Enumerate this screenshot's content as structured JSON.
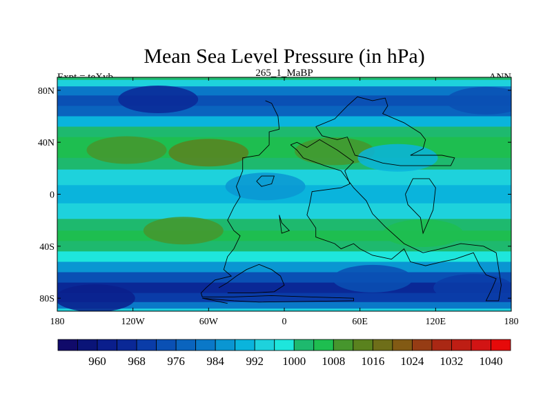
{
  "chart_data": {
    "type": "heatmap",
    "title": "Mean Sea Level Pressure (in hPa)",
    "left_label": "Expt = teXyb",
    "center_label": "265_1_MaBP",
    "right_label": "ANN",
    "xlim": [
      -180,
      180
    ],
    "ylim": [
      -90,
      90
    ],
    "x_ticks": [
      {
        "value": -180,
        "label": "180"
      },
      {
        "value": -120,
        "label": "120W"
      },
      {
        "value": -60,
        "label": "60W"
      },
      {
        "value": 0,
        "label": "0"
      },
      {
        "value": 60,
        "label": "60E"
      },
      {
        "value": 120,
        "label": "120E"
      },
      {
        "value": 180,
        "label": "180"
      }
    ],
    "y_ticks": [
      {
        "value": 80,
        "label": "80N"
      },
      {
        "value": 40,
        "label": "40N"
      },
      {
        "value": 0,
        "label": "0"
      },
      {
        "value": -40,
        "label": "40S"
      },
      {
        "value": -80,
        "label": "80S"
      }
    ],
    "colorbar": {
      "levels": [
        956,
        960,
        964,
        968,
        972,
        976,
        980,
        984,
        988,
        992,
        996,
        1000,
        1004,
        1008,
        1012,
        1016,
        1020,
        1024,
        1028,
        1032,
        1036,
        1040
      ],
      "labels": [
        "960",
        "968",
        "976",
        "984",
        "992",
        "1000",
        "1008",
        "1016",
        "1024",
        "1032",
        "1040"
      ],
      "colors": [
        "#100a6a",
        "#0a1478",
        "#0a1e8c",
        "#0a2896",
        "#0a3ca8",
        "#0a50b4",
        "#0a64be",
        "#0a78c8",
        "#0a96d2",
        "#0ab4dc",
        "#1ed2dc",
        "#1ee6dc",
        "#1eb96e",
        "#1ebe50",
        "#46962d",
        "#5a821e",
        "#6e6e19",
        "#825a14",
        "#963c14",
        "#aa2814",
        "#be1e14",
        "#d21414",
        "#e60a0a"
      ]
    },
    "zonal_profile": [
      {
        "lat": 90,
        "value": 1000
      },
      {
        "lat": 86,
        "value": 994
      },
      {
        "lat": 80,
        "value": 982
      },
      {
        "lat": 72,
        "value": 972
      },
      {
        "lat": 64,
        "value": 976
      },
      {
        "lat": 56,
        "value": 990
      },
      {
        "lat": 48,
        "value": 1000
      },
      {
        "lat": 40,
        "value": 1006
      },
      {
        "lat": 32,
        "value": 1005
      },
      {
        "lat": 24,
        "value": 1000
      },
      {
        "lat": 14,
        "value": 992
      },
      {
        "lat": 0,
        "value": 988
      },
      {
        "lat": -14,
        "value": 992
      },
      {
        "lat": -24,
        "value": 1000
      },
      {
        "lat": -32,
        "value": 1004
      },
      {
        "lat": -40,
        "value": 1003
      },
      {
        "lat": -48,
        "value": 996
      },
      {
        "lat": -56,
        "value": 986
      },
      {
        "lat": -64,
        "value": 974
      },
      {
        "lat": -72,
        "value": 967
      },
      {
        "lat": -80,
        "value": 970
      },
      {
        "lat": -86,
        "value": 982
      },
      {
        "lat": -90,
        "value": 995
      }
    ],
    "pressure_anomalies": [
      {
        "lon": -100,
        "lat": 73,
        "value": 964
      },
      {
        "lon": 160,
        "lat": 72,
        "value": 972
      },
      {
        "lon": -60,
        "lat": 32,
        "value": 1012
      },
      {
        "lon": 40,
        "lat": 33,
        "value": 1010
      },
      {
        "lon": -125,
        "lat": 34,
        "value": 1008
      },
      {
        "lon": -80,
        "lat": -28,
        "value": 1010
      },
      {
        "lon": 110,
        "lat": -30,
        "value": 1006
      },
      {
        "lon": -15,
        "lat": 6,
        "value": 984
      },
      {
        "lon": 90,
        "lat": 28,
        "value": 990
      },
      {
        "lon": -150,
        "lat": -80,
        "value": 962
      },
      {
        "lon": 150,
        "lat": -72,
        "value": 968
      },
      {
        "lon": 70,
        "lat": -65,
        "value": 975
      }
    ],
    "coastlines": [
      [
        [
          -15,
          72
        ],
        [
          -10,
          70
        ],
        [
          -5,
          60
        ],
        [
          -4,
          50
        ],
        [
          -12,
          48
        ],
        [
          -12,
          38
        ],
        [
          -20,
          30
        ],
        [
          -33,
          28
        ],
        [
          -33,
          18
        ],
        [
          -38,
          6
        ],
        [
          -35,
          -2
        ],
        [
          -40,
          -10
        ],
        [
          -45,
          -20
        ],
        [
          -40,
          -28
        ],
        [
          -35,
          -32
        ],
        [
          -40,
          -42
        ],
        [
          -45,
          -48
        ],
        [
          -48,
          -58
        ],
        [
          -42,
          -63
        ],
        [
          -55,
          -66
        ],
        [
          -62,
          -72
        ],
        [
          -66,
          -76
        ],
        [
          -65,
          -79
        ],
        [
          -40,
          -79
        ],
        [
          -10,
          -78
        ],
        [
          20,
          -79
        ],
        [
          55,
          -80
        ],
        [
          55,
          -82
        ],
        [
          -20,
          -83
        ],
        [
          -40,
          -82
        ],
        [
          -65,
          -80
        ],
        [
          -55,
          -82
        ],
        [
          -45,
          -84
        ]
      ],
      [
        [
          -52,
          -72
        ],
        [
          -45,
          -68
        ],
        [
          -38,
          -63
        ],
        [
          -30,
          -58
        ],
        [
          -20,
          -54
        ],
        [
          -10,
          -58
        ],
        [
          -3,
          -63
        ],
        [
          0,
          -70
        ],
        [
          -8,
          -75
        ],
        [
          -25,
          -76
        ],
        [
          -45,
          -76
        ]
      ],
      [
        [
          5,
          38
        ],
        [
          10,
          40
        ],
        [
          18,
          36
        ],
        [
          28,
          42
        ],
        [
          42,
          34
        ],
        [
          55,
          25
        ],
        [
          48,
          18
        ],
        [
          52,
          8
        ],
        [
          45,
          5
        ],
        [
          22,
          2
        ],
        [
          20,
          -8
        ],
        [
          18,
          -16
        ],
        [
          25,
          -26
        ],
        [
          25,
          -33
        ],
        [
          40,
          -38
        ],
        [
          45,
          -42
        ],
        [
          55,
          -38
        ],
        [
          60,
          -42
        ],
        [
          70,
          -47
        ],
        [
          85,
          -50
        ],
        [
          95,
          -42
        ],
        [
          100,
          -52
        ],
        [
          112,
          -55
        ],
        [
          125,
          -52
        ],
        [
          135,
          -50
        ],
        [
          150,
          -45
        ],
        [
          155,
          -55
        ],
        [
          160,
          -62
        ],
        [
          168,
          -65
        ],
        [
          165,
          -72
        ],
        [
          160,
          -82
        ],
        [
          170,
          -82
        ],
        [
          172,
          -70
        ],
        [
          168,
          -45
        ],
        [
          158,
          -40
        ],
        [
          140,
          -38
        ],
        [
          124,
          -42
        ],
        [
          110,
          -45
        ],
        [
          95,
          -38
        ],
        [
          80,
          -25
        ],
        [
          70,
          -15
        ],
        [
          65,
          -5
        ],
        [
          55,
          5
        ],
        [
          45,
          18
        ],
        [
          32,
          22
        ],
        [
          15,
          28
        ],
        [
          10,
          34
        ],
        [
          5,
          38
        ]
      ],
      [
        [
          25,
          52
        ],
        [
          40,
          58
        ],
        [
          50,
          68
        ],
        [
          58,
          75
        ],
        [
          70,
          72
        ],
        [
          80,
          74
        ],
        [
          82,
          68
        ],
        [
          78,
          62
        ],
        [
          95,
          55
        ],
        [
          108,
          47
        ],
        [
          112,
          42
        ],
        [
          110,
          35
        ],
        [
          100,
          30
        ],
        [
          125,
          30
        ],
        [
          135,
          28
        ],
        [
          132,
          22
        ],
        [
          92,
          22
        ],
        [
          78,
          24
        ],
        [
          65,
          28
        ],
        [
          56,
          30
        ],
        [
          50,
          44
        ],
        [
          42,
          42
        ],
        [
          30,
          45
        ],
        [
          25,
          52
        ]
      ],
      [
        [
          96,
          0
        ],
        [
          102,
          12
        ],
        [
          115,
          12
        ],
        [
          120,
          5
        ],
        [
          118,
          -12
        ],
        [
          110,
          -30
        ],
        [
          108,
          -18
        ],
        [
          98,
          -8
        ],
        [
          96,
          0
        ]
      ],
      [
        [
          -4,
          -16
        ],
        [
          -2,
          -22
        ],
        [
          4,
          -28
        ],
        [
          -2,
          -30
        ],
        [
          -4,
          -16
        ]
      ],
      [
        [
          -22,
          10
        ],
        [
          -18,
          14
        ],
        [
          -8,
          14
        ],
        [
          -10,
          8
        ],
        [
          -18,
          6
        ],
        [
          -22,
          10
        ]
      ]
    ]
  }
}
